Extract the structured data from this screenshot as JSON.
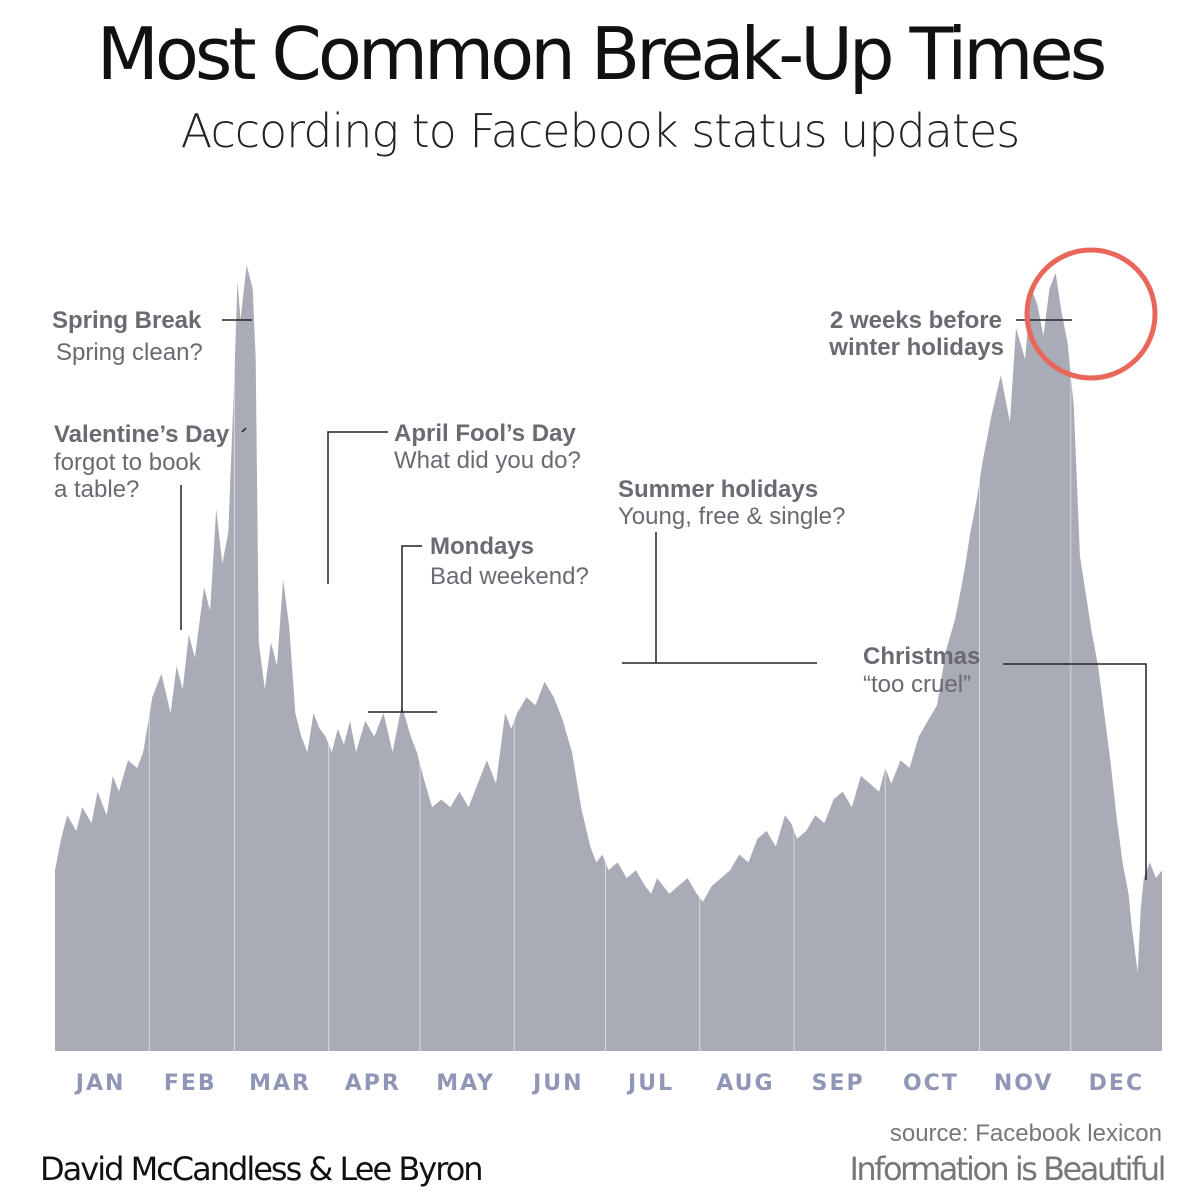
{
  "title": "Most Common Break-Up Times",
  "subtitle": "According to Facebook status updates",
  "credit": "David McCandless & Lee Byron",
  "source": "source: Facebook lexicon",
  "brand": "Information is Beautiful",
  "colors": {
    "area": "#a9abb7",
    "month_label": "#8f96b6",
    "annotation": "#6a6a72",
    "highlight_circle": "#e8665a"
  },
  "chart_data": {
    "type": "area",
    "title": "Most Common Break-Up Times",
    "subtitle": "According to Facebook status updates",
    "xlabel": "",
    "ylabel": "",
    "x_axis_labels": [
      "JAN",
      "FEB",
      "MAR",
      "APR",
      "MAY",
      "JUN",
      "JUL",
      "AUG",
      "SEP",
      "OCT",
      "NOV",
      "DEC"
    ],
    "y_axis_shown": false,
    "grid": "vertical month separators",
    "ylim": [
      0,
      100
    ],
    "x": [
      1,
      3,
      5,
      8,
      10,
      13,
      15,
      18,
      20,
      22,
      25,
      28,
      30,
      33,
      36,
      39,
      41,
      43,
      45,
      47,
      50,
      52,
      54,
      56,
      58,
      60,
      61,
      62,
      64,
      66,
      67,
      68,
      70,
      72,
      74,
      76,
      78,
      80,
      82,
      84,
      86,
      88,
      90,
      92,
      94,
      96,
      98,
      100,
      103,
      106,
      109,
      112,
      115,
      118,
      120,
      122,
      125,
      128,
      131,
      134,
      137,
      140,
      143,
      146,
      149,
      151,
      153,
      156,
      159,
      162,
      165,
      168,
      171,
      174,
      177,
      179,
      181,
      183,
      186,
      189,
      192,
      195,
      197,
      199,
      201,
      203,
      206,
      209,
      212,
      214,
      217,
      220,
      223,
      226,
      229,
      232,
      235,
      238,
      241,
      243,
      245,
      248,
      251,
      254,
      257,
      260,
      263,
      266,
      269,
      272,
      274,
      276,
      279,
      282,
      285,
      288,
      291,
      294,
      297,
      300,
      302,
      304,
      306,
      309,
      312,
      315,
      317,
      320,
      322,
      324,
      326,
      328,
      330,
      332,
      334,
      336,
      338,
      340,
      342,
      344,
      346,
      348,
      350,
      352,
      354,
      355,
      356,
      357,
      358,
      359,
      361,
      363,
      365
    ],
    "series": [
      {
        "values": [
          23,
          27,
          30,
          28,
          31,
          29,
          33,
          30,
          35,
          33,
          37,
          36,
          38,
          45,
          48,
          43,
          49,
          46,
          53,
          50,
          59,
          56,
          69,
          62,
          66,
          86,
          98,
          93,
          100,
          97,
          88,
          52,
          46,
          52,
          49,
          60,
          54,
          43,
          40,
          38,
          43,
          41,
          40,
          38,
          41,
          39,
          42,
          38,
          42,
          40,
          43,
          38,
          44,
          40,
          38,
          35,
          31,
          32,
          31,
          33,
          31,
          34,
          37,
          34,
          43,
          41,
          43,
          45,
          44,
          47,
          45,
          42,
          38,
          31,
          26,
          24,
          25,
          23,
          24,
          22,
          23,
          21,
          20,
          22,
          21,
          20,
          21,
          22,
          20,
          19,
          21,
          22,
          23,
          25,
          24,
          27,
          28,
          26,
          30,
          29,
          27,
          28,
          30,
          29,
          32,
          33,
          31,
          35,
          34,
          33,
          36,
          34,
          37,
          36,
          40,
          42,
          44,
          51,
          55,
          61,
          66,
          70,
          75,
          81,
          86,
          80,
          92,
          88,
          97,
          95,
          91,
          97,
          99,
          94,
          90,
          82,
          63,
          58,
          53,
          49,
          43,
          37,
          30,
          24,
          20,
          16,
          13,
          10,
          18,
          22,
          24,
          22,
          23
        ]
      }
    ],
    "annotations": [
      {
        "label": "Spring Break",
        "note": "Spring clean?"
      },
      {
        "label": "Valentine’s Day",
        "note": "forgot to book a table?"
      },
      {
        "label": "April Fool’s Day",
        "note": "What did you do?"
      },
      {
        "label": "Mondays",
        "note": "Bad weekend?"
      },
      {
        "label": "Summer holidays",
        "note": "Young, free & single?"
      },
      {
        "label": "2 weeks before winter holidays",
        "note": ""
      },
      {
        "label": "Christmas",
        "note": "“too cruel”"
      }
    ],
    "legend": "none"
  },
  "annotations": {
    "spring_break": {
      "label": "Spring Break",
      "note": "Spring clean?"
    },
    "valentines": {
      "label": "Valentine’s Day",
      "note_line1": "forgot to book",
      "note_line2": "a table?"
    },
    "april_fools": {
      "label": "April Fool’s Day",
      "note": "What did you do?"
    },
    "mondays": {
      "label": "Mondays",
      "note": "Bad weekend?"
    },
    "summer": {
      "label": "Summer holidays",
      "note": "Young, free & single?"
    },
    "winter": {
      "label_line1": "2 weeks before",
      "label_line2": "winter holidays"
    },
    "christmas": {
      "label": "Christmas",
      "note": "“too cruel”"
    }
  }
}
